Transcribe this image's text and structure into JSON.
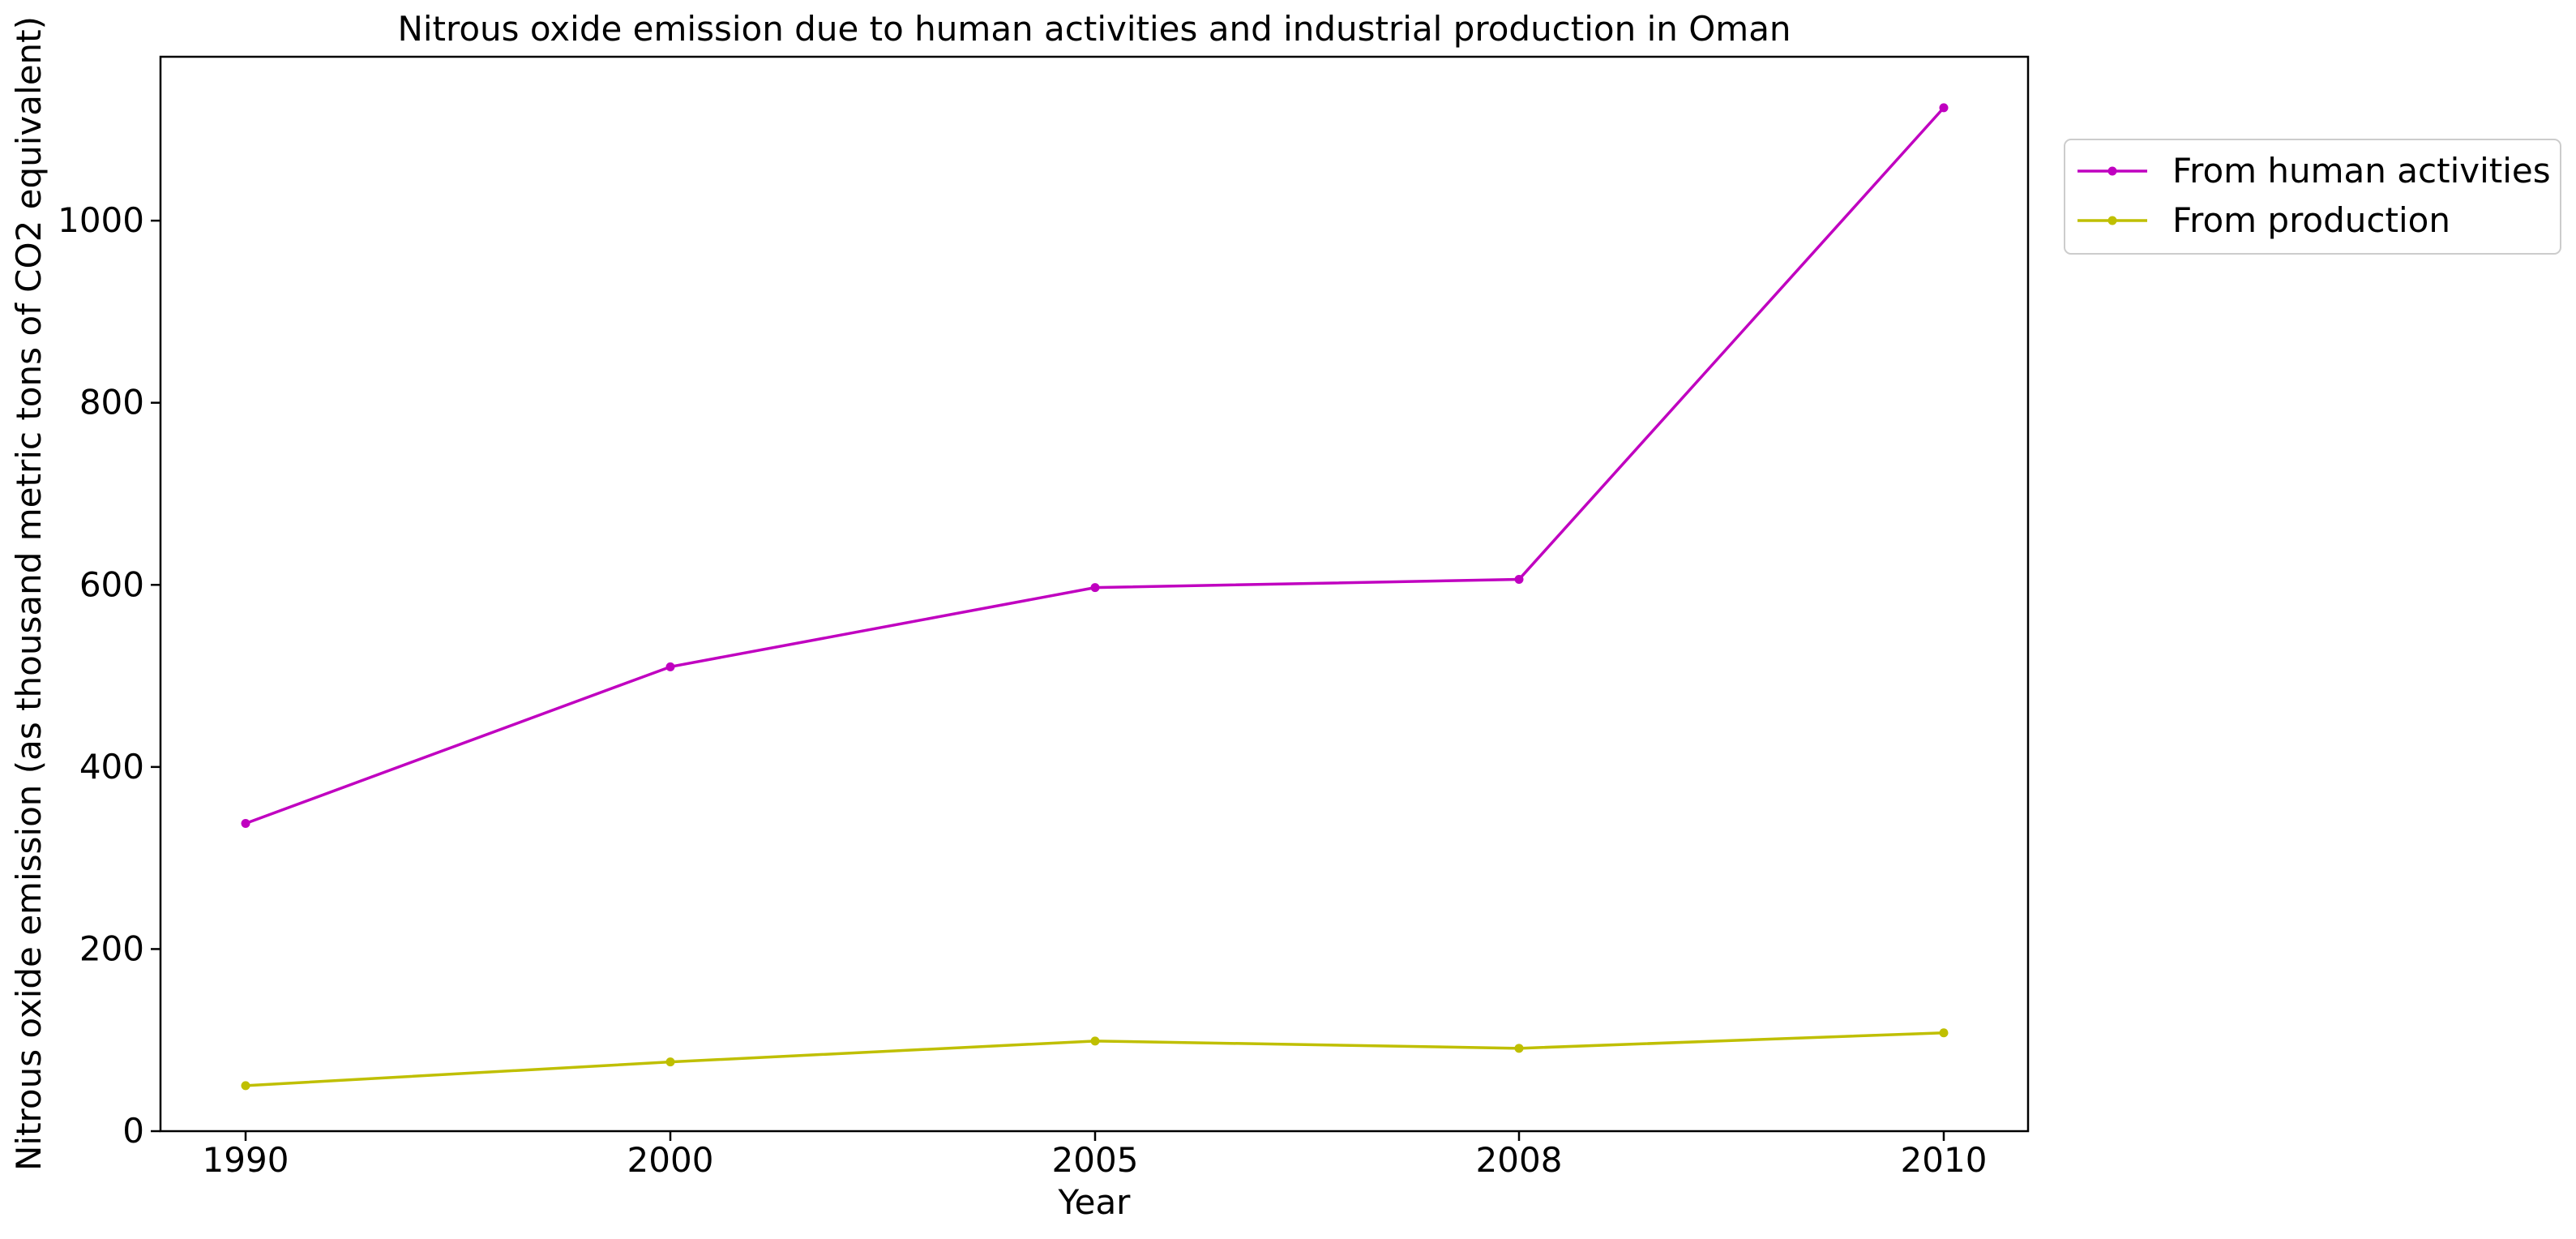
{
  "chart_data": {
    "type": "line",
    "title": "Nitrous oxide emission due to human activities and industrial production in Oman",
    "xlabel": "Year",
    "ylabel": "Nitrous oxide emission (as thousand metric tons of CO2 equivalent)",
    "categories": [
      "1990",
      "2000",
      "2005",
      "2008",
      "2010"
    ],
    "ylim": [
      0,
      1180
    ],
    "yticks": [
      0,
      200,
      400,
      600,
      800,
      1000
    ],
    "grid": false,
    "legend_position": "upper-right-outside",
    "series": [
      {
        "name": "From human activities",
        "color": "#c000c0",
        "values": [
          338,
          510,
          597,
          606,
          1124
        ]
      },
      {
        "name": "From production",
        "color": "#bfbf00",
        "values": [
          50,
          76,
          99,
          91,
          108
        ]
      }
    ]
  }
}
